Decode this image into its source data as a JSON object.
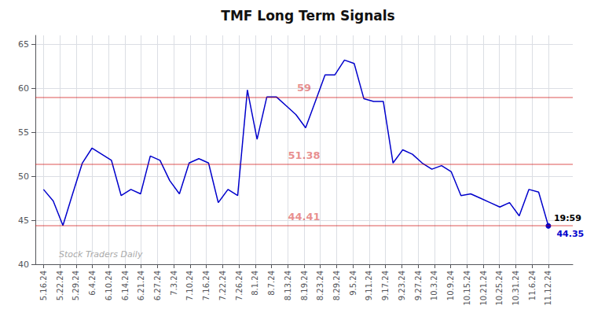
{
  "chart_data": {
    "type": "line",
    "title": "TMF Long Term Signals",
    "x": [
      0,
      0.596154,
      1.192308,
      1.788462,
      2.384615,
      2.980769,
      3.576923,
      4.173077,
      4.769231,
      5.365385,
      5.961538,
      6.557692,
      7.153846,
      7.75,
      8.346154,
      8.942308,
      9.538462,
      10.134615,
      10.730769,
      11.326923,
      11.923077,
      12.519231,
      13.115385,
      13.711538,
      14.307692,
      14.903846,
      15.5,
      16.096154,
      16.692308,
      17.288462,
      17.884615,
      18.480769,
      19.076923,
      19.673077,
      20.269231,
      20.865385,
      21.461538,
      22.057692,
      22.653846,
      23.25,
      23.846154,
      24.442308,
      25.038462,
      25.634615,
      26.230769,
      26.826923,
      27.423077,
      28.019231,
      28.615385,
      29.211538,
      29.807692,
      30.403846,
      31
    ],
    "values": [
      48.5,
      47.2,
      44.4,
      48.0,
      51.5,
      53.2,
      52.5,
      51.8,
      47.8,
      48.5,
      48.0,
      52.3,
      51.8,
      49.5,
      48.0,
      51.5,
      52.0,
      51.5,
      47.0,
      48.5,
      47.8,
      59.8,
      54.2,
      59.0,
      59.0,
      58.0,
      57.0,
      55.5,
      58.5,
      61.5,
      61.5,
      63.2,
      62.8,
      58.8,
      58.5,
      58.5,
      51.5,
      53.0,
      52.5,
      51.5,
      50.8,
      51.2,
      50.5,
      47.8,
      48.0,
      47.5,
      47.0,
      46.5,
      47.0,
      45.5,
      48.5,
      48.2,
      44.35
    ],
    "value_labels": [
      null,
      null,
      null,
      null,
      null,
      null,
      null,
      null,
      null,
      null,
      null,
      null,
      null,
      null,
      null,
      null,
      null,
      null,
      null,
      null,
      null,
      null,
      null,
      null,
      null,
      null,
      null,
      null,
      null,
      null,
      null,
      null,
      null,
      null,
      null,
      null,
      null,
      null,
      null,
      null,
      null,
      null,
      null,
      null,
      null,
      null,
      null,
      null,
      null,
      null,
      null,
      null,
      "44.35"
    ],
    "color": "#0000cc",
    "xlim": [
      -0.5,
      32.5
    ],
    "xticks": [
      {
        "value": 0,
        "label": "5.16.24"
      },
      {
        "value": 1,
        "label": "5.22.24"
      },
      {
        "value": 2,
        "label": "5.29.24"
      },
      {
        "value": 3,
        "label": "6.4.24"
      },
      {
        "value": 4,
        "label": "6.10.24"
      },
      {
        "value": 5,
        "label": "6.14.24"
      },
      {
        "value": 6,
        "label": "6.21.24"
      },
      {
        "value": 7,
        "label": "6.27.24"
      },
      {
        "value": 8,
        "label": "7.3.24"
      },
      {
        "value": 9,
        "label": "7.10.24"
      },
      {
        "value": 10,
        "label": "7.16.24"
      },
      {
        "value": 11,
        "label": "7.22.24"
      },
      {
        "value": 12,
        "label": "7.26.24"
      },
      {
        "value": 13,
        "label": "8.1.24"
      },
      {
        "value": 14,
        "label": "8.7.24"
      },
      {
        "value": 15,
        "label": "8.13.24"
      },
      {
        "value": 16,
        "label": "8.19.24"
      },
      {
        "value": 17,
        "label": "8.23.24"
      },
      {
        "value": 18,
        "label": "8.29.24"
      },
      {
        "value": 19,
        "label": "9.5.24"
      },
      {
        "value": 20,
        "label": "9.11.24"
      },
      {
        "value": 21,
        "label": "9.17.24"
      },
      {
        "value": 22,
        "label": "9.23.24"
      },
      {
        "value": 23,
        "label": "9.27.24"
      },
      {
        "value": 24,
        "label": "10.3.24"
      },
      {
        "value": 25,
        "label": "10.9.24"
      },
      {
        "value": 26,
        "label": "10.15.24"
      },
      {
        "value": 27,
        "label": "10.21.24"
      },
      {
        "value": 28,
        "label": "10.25.24"
      },
      {
        "value": 29,
        "label": "10.31.24"
      },
      {
        "value": 30,
        "label": "11.6.24"
      },
      {
        "value": 31,
        "label": "11.12.24"
      }
    ],
    "ylim": [
      40,
      66
    ],
    "yticks": [
      40,
      45,
      50,
      55,
      60,
      65
    ],
    "grid": true,
    "hlines": [
      {
        "value": 59.0,
        "label": "59",
        "color": "#cc0000"
      },
      {
        "value": 51.38,
        "label": "51.38",
        "color": "#cc0000"
      },
      {
        "value": 44.41,
        "label": "44.41",
        "color": "#cc0000"
      }
    ],
    "end_label": "19:59",
    "watermark": "Stock Traders Daily"
  }
}
